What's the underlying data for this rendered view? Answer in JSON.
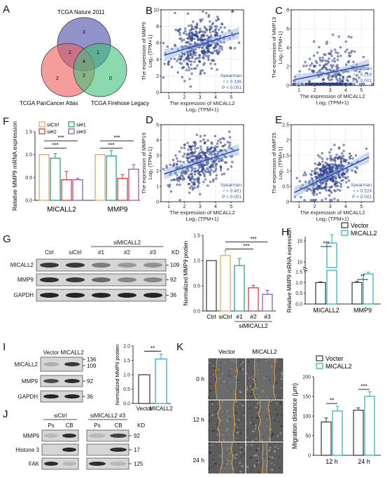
{
  "panel_letters": [
    "A",
    "B",
    "C",
    "D",
    "E",
    "F",
    "G",
    "H",
    "I",
    "J",
    "K"
  ],
  "venn": {
    "sets": [
      "TCGA Nature 2011",
      "TCGA PanCancer Atlas",
      "TCGA Firehose Legacy"
    ],
    "counts": {
      "top_only": "3",
      "left_only": "2",
      "right_only": "0",
      "top_left": "2",
      "top_right": "1",
      "left_right": "2",
      "center": "4"
    },
    "colors": {
      "top": "#6c6fb8",
      "left": "#ef5b5b",
      "right": "#3fbf7a"
    }
  },
  "scatter_common": {
    "xlabel_line1": "The expression of MICALL2",
    "xlabel_line2": "Log₂ (TPM+1)",
    "stat_method": "Spearman",
    "point_color": "#3a4fa0",
    "fit_color": "#3a4fa0"
  },
  "chart_data": [
    {
      "panel": "B",
      "type": "scatter",
      "ylabel_line1": "The expression of MMP9",
      "ylabel_line2": "Log₂ (TPM+1)",
      "xlim": [
        0.5,
        5.8
      ],
      "ylim": [
        0,
        10
      ],
      "xticks": [
        1,
        2,
        3,
        4,
        5
      ],
      "yticks": [
        0,
        2,
        4,
        6,
        8,
        10
      ],
      "fit": [
        [
          0.7,
          4.5
        ],
        [
          5.5,
          7.2
        ]
      ],
      "stats": [
        "Spearman",
        "r = 0.336",
        "P < 0.001"
      ],
      "n_points": 380,
      "seed": 11,
      "cx": 3.0,
      "sdx": 0.9,
      "slope": 0.55,
      "intercept": 4.2,
      "noise": 1.6
    },
    {
      "panel": "C",
      "type": "scatter",
      "ylabel_line1": "The expression of MMP13",
      "ylabel_line2": "Log₂ (TPM+1)",
      "xlim": [
        0.5,
        5.8
      ],
      "ylim": [
        0,
        8
      ],
      "xticks": [
        1,
        2,
        3,
        4,
        5
      ],
      "yticks": [
        0,
        2,
        4,
        6,
        8
      ],
      "fit": [
        [
          0.7,
          0.6
        ],
        [
          5.5,
          2.2
        ]
      ],
      "stats": [
        "Spearman",
        "r = 0.219",
        "P < 0.001"
      ],
      "n_points": 320,
      "seed": 23,
      "cx": 3.0,
      "sdx": 0.9,
      "slope": 0.35,
      "intercept": 0.3,
      "noise": 1.5,
      "floor": true
    },
    {
      "panel": "D",
      "type": "scatter",
      "ylabel_line1": "The expression of MMP19",
      "ylabel_line2": "Log₂ (TPM+1)",
      "xlim": [
        0.5,
        5.8
      ],
      "ylim": [
        0,
        5
      ],
      "xticks": [
        1,
        2,
        3,
        4,
        5
      ],
      "yticks": [
        0,
        1,
        2,
        3,
        4,
        5
      ],
      "fit": [
        [
          0.7,
          1.8
        ],
        [
          5.5,
          3.4
        ]
      ],
      "stats": [
        "Spearman",
        "r = 0.401",
        "P < 0.001"
      ],
      "n_points": 380,
      "seed": 37,
      "cx": 3.0,
      "sdx": 0.9,
      "slope": 0.33,
      "intercept": 1.6,
      "noise": 0.75
    },
    {
      "panel": "E",
      "type": "scatter",
      "ylabel_line1": "The expression of MMP25",
      "ylabel_line2": "Log₂ (TPM+1)",
      "xlim": [
        0.5,
        5.8
      ],
      "ylim": [
        0,
        2.5
      ],
      "xticks": [
        1,
        2,
        3,
        4,
        5
      ],
      "yticks": [
        0,
        0.5,
        1.0,
        1.5,
        2.0,
        2.5
      ],
      "fit": [
        [
          0.7,
          0.3
        ],
        [
          5.5,
          1.45
        ]
      ],
      "stats": [
        "Spearman",
        "r = 0.524",
        "P < 0.001"
      ],
      "n_points": 380,
      "seed": 53,
      "cx": 3.0,
      "sdx": 0.85,
      "slope": 0.24,
      "intercept": 0.15,
      "noise": 0.33
    },
    {
      "panel": "F",
      "type": "bar",
      "ylabel": "Relative MMP9 mRNA expression",
      "categories": [
        "MICALL2",
        "MMP9"
      ],
      "ylim": [
        0,
        1.5
      ],
      "yticks": [
        0.0,
        0.5,
        1.0,
        1.5
      ],
      "series": [
        {
          "name": "siCtrl",
          "color": "#e0a060",
          "values": [
            1.0,
            1.0
          ],
          "err": [
            0.0,
            0.0
          ]
        },
        {
          "name": "si#1",
          "color": "#1a9a7a",
          "values": [
            0.92,
            0.97
          ],
          "err": [
            0.1,
            0.12
          ]
        },
        {
          "name": "si#2",
          "color": "#d9302e",
          "values": [
            0.45,
            0.48
          ],
          "err": [
            0.18,
            0.08
          ]
        },
        {
          "name": "si#3",
          "color": "#8a4fb0",
          "values": [
            0.45,
            0.68
          ],
          "err": [
            0.03,
            0.1
          ]
        }
      ],
      "sig": [
        {
          "from": [
            0,
            0
          ],
          "to": [
            0,
            3
          ],
          "y": 1.3,
          "label": "***"
        },
        {
          "from": [
            0,
            0
          ],
          "to": [
            0,
            2
          ],
          "y": 1.14,
          "label": "***"
        },
        {
          "from": [
            1,
            0
          ],
          "to": [
            1,
            3
          ],
          "y": 1.3,
          "label": "***"
        },
        {
          "from": [
            1,
            0
          ],
          "to": [
            1,
            2
          ],
          "y": 1.14,
          "label": "***"
        }
      ]
    },
    {
      "panel": "G",
      "type": "bar",
      "ylabel": "Normalized MMP9 protien",
      "categories": [
        "Ctrl",
        "siCtrl",
        "#1",
        "#2",
        "#3"
      ],
      "group_label": "siMICALL2",
      "ylim": [
        0,
        1.5
      ],
      "yticks": [
        0.0,
        0.5,
        1.0,
        1.5
      ],
      "values": [
        1.0,
        1.1,
        0.9,
        0.46,
        0.33
      ],
      "err": [
        0.0,
        0.1,
        0.14,
        0.05,
        0.08
      ],
      "colors": [
        "#333333",
        "#e0a060",
        "#1a9a7a",
        "#d9302e",
        "#8a4fb0"
      ],
      "sig": [
        {
          "from": 1,
          "to": 4,
          "y": 1.37,
          "label": "***"
        },
        {
          "from": 1,
          "to": 3,
          "y": 1.23,
          "label": "***"
        }
      ]
    },
    {
      "panel": "H",
      "type": "bar",
      "ylabel": "Relative MMP9 mRNA expression",
      "categories": [
        "MICALL2",
        "MMP9"
      ],
      "yticks_low": [
        0.0,
        0.5,
        1.0,
        1.5
      ],
      "yticks_high": [
        10,
        15
      ],
      "series": [
        {
          "name": "Vector",
          "color": "#333333",
          "values": [
            1.0,
            1.0
          ],
          "err": [
            0.03,
            0.06
          ]
        },
        {
          "name": "MICALL2",
          "color": "#2aa8c8",
          "values": [
            14.5,
            1.4
          ],
          "err": [
            2.0,
            0.08
          ]
        }
      ],
      "sig": [
        {
          "cat": 0,
          "label": "***"
        },
        {
          "cat": 1,
          "label": "**"
        }
      ]
    },
    {
      "panel": "I",
      "type": "bar",
      "ylabel": "Normalized MMP9 protien",
      "categories": [
        "Vector",
        "MICALL2"
      ],
      "ylim": [
        0,
        2.0
      ],
      "yticks": [
        0.0,
        0.5,
        1.0,
        1.5,
        2.0
      ],
      "values": [
        1.0,
        1.55
      ],
      "err": [
        0.0,
        0.17
      ],
      "colors": [
        "#333333",
        "#2aa8c8"
      ],
      "sig": [
        {
          "from": 0,
          "to": 1,
          "y": 1.82,
          "label": "**"
        }
      ]
    },
    {
      "panel": "K",
      "type": "bar",
      "ylabel": "Migration distance (μm)",
      "categories": [
        "12 h",
        "24 h"
      ],
      "ylim": [
        0,
        200
      ],
      "yticks": [
        0,
        50,
        100,
        150,
        200
      ],
      "series": [
        {
          "name": "Vocter",
          "color": "#333333",
          "values": [
            85,
            115
          ],
          "err": [
            10,
            6
          ]
        },
        {
          "name": "MICALL2",
          "color": "#2aa8c8",
          "values": [
            113,
            150
          ],
          "err": [
            12,
            12
          ]
        }
      ],
      "sig": [
        {
          "cat": 0,
          "y": 132,
          "label": "**"
        },
        {
          "cat": 1,
          "y": 168,
          "label": "***"
        }
      ]
    }
  ],
  "blots": {
    "G": {
      "lanes": [
        "Ctrl",
        "siCtrl",
        "#1",
        "#2",
        "#3"
      ],
      "group": "siMICALL2",
      "kd_header": "KD",
      "rows": [
        {
          "name": "MICALL2",
          "kd": "109"
        },
        {
          "name": "MMP9",
          "kd": "92"
        },
        {
          "name": "GAPDH",
          "kd": "36"
        }
      ]
    },
    "I": {
      "lanes": [
        "Vector",
        "MICALL2"
      ],
      "rows": [
        {
          "name": "MICALL2",
          "kd": "136",
          "kd2": "109"
        },
        {
          "name": "MMP9",
          "kd": "92"
        },
        {
          "name": "GAPDH",
          "kd": "36"
        }
      ]
    },
    "J": {
      "groups": [
        "siCtrl",
        "siMICALL2 #3"
      ],
      "lanes": [
        "Ps",
        "CB",
        "Ps",
        "CB"
      ],
      "kd_header": "KD",
      "rows": [
        {
          "name": "MMP9",
          "kd": "92"
        },
        {
          "name": "Histone 3",
          "kd": "17"
        },
        {
          "name": "FAK",
          "kd": "125"
        }
      ]
    }
  },
  "wound": {
    "columns": [
      "Vector",
      "MICALL2"
    ],
    "rows": [
      "0 h",
      "12 h",
      "24 h"
    ],
    "line_color": "#e8a838"
  }
}
